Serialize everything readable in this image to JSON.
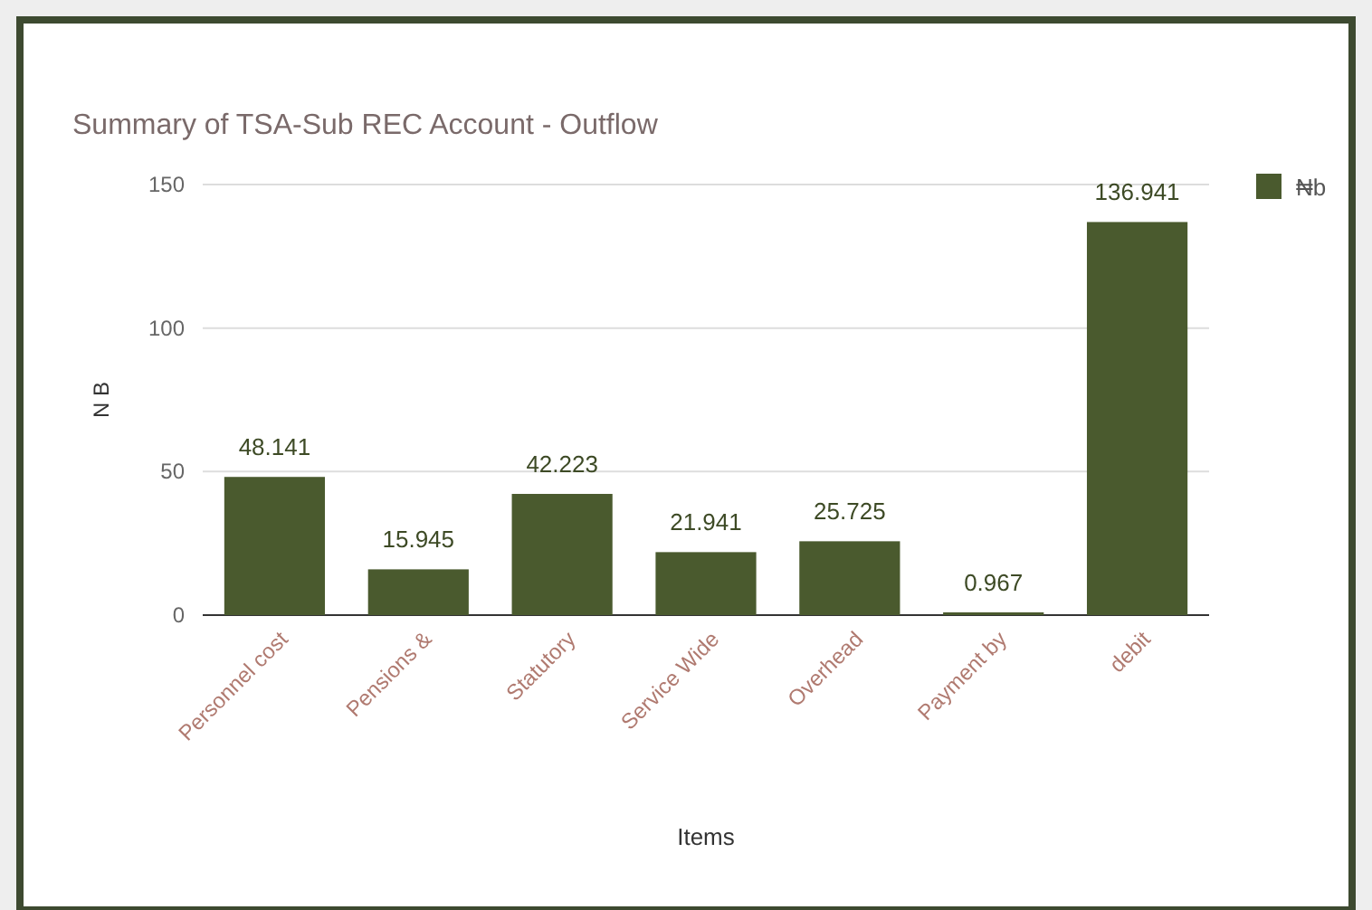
{
  "chart_data": {
    "type": "bar",
    "title": "Summary of TSA-Sub REC Account  - Outflow",
    "xlabel": "Items",
    "ylabel": "N B",
    "categories": [
      "Personnel cost",
      "Pensions &",
      "Statutory",
      "Service Wide",
      "Overhead",
      "Payment by",
      "debit"
    ],
    "series": [
      {
        "name": "₦b",
        "color": "#4a5a2e",
        "values": [
          48.141,
          15.945,
          42.223,
          21.941,
          25.725,
          0.967,
          136.941
        ]
      }
    ],
    "ylim": [
      0,
      150
    ],
    "yticks": [
      0,
      50,
      100,
      150
    ],
    "grid": "y",
    "legend": "top right",
    "data_labels": true
  }
}
